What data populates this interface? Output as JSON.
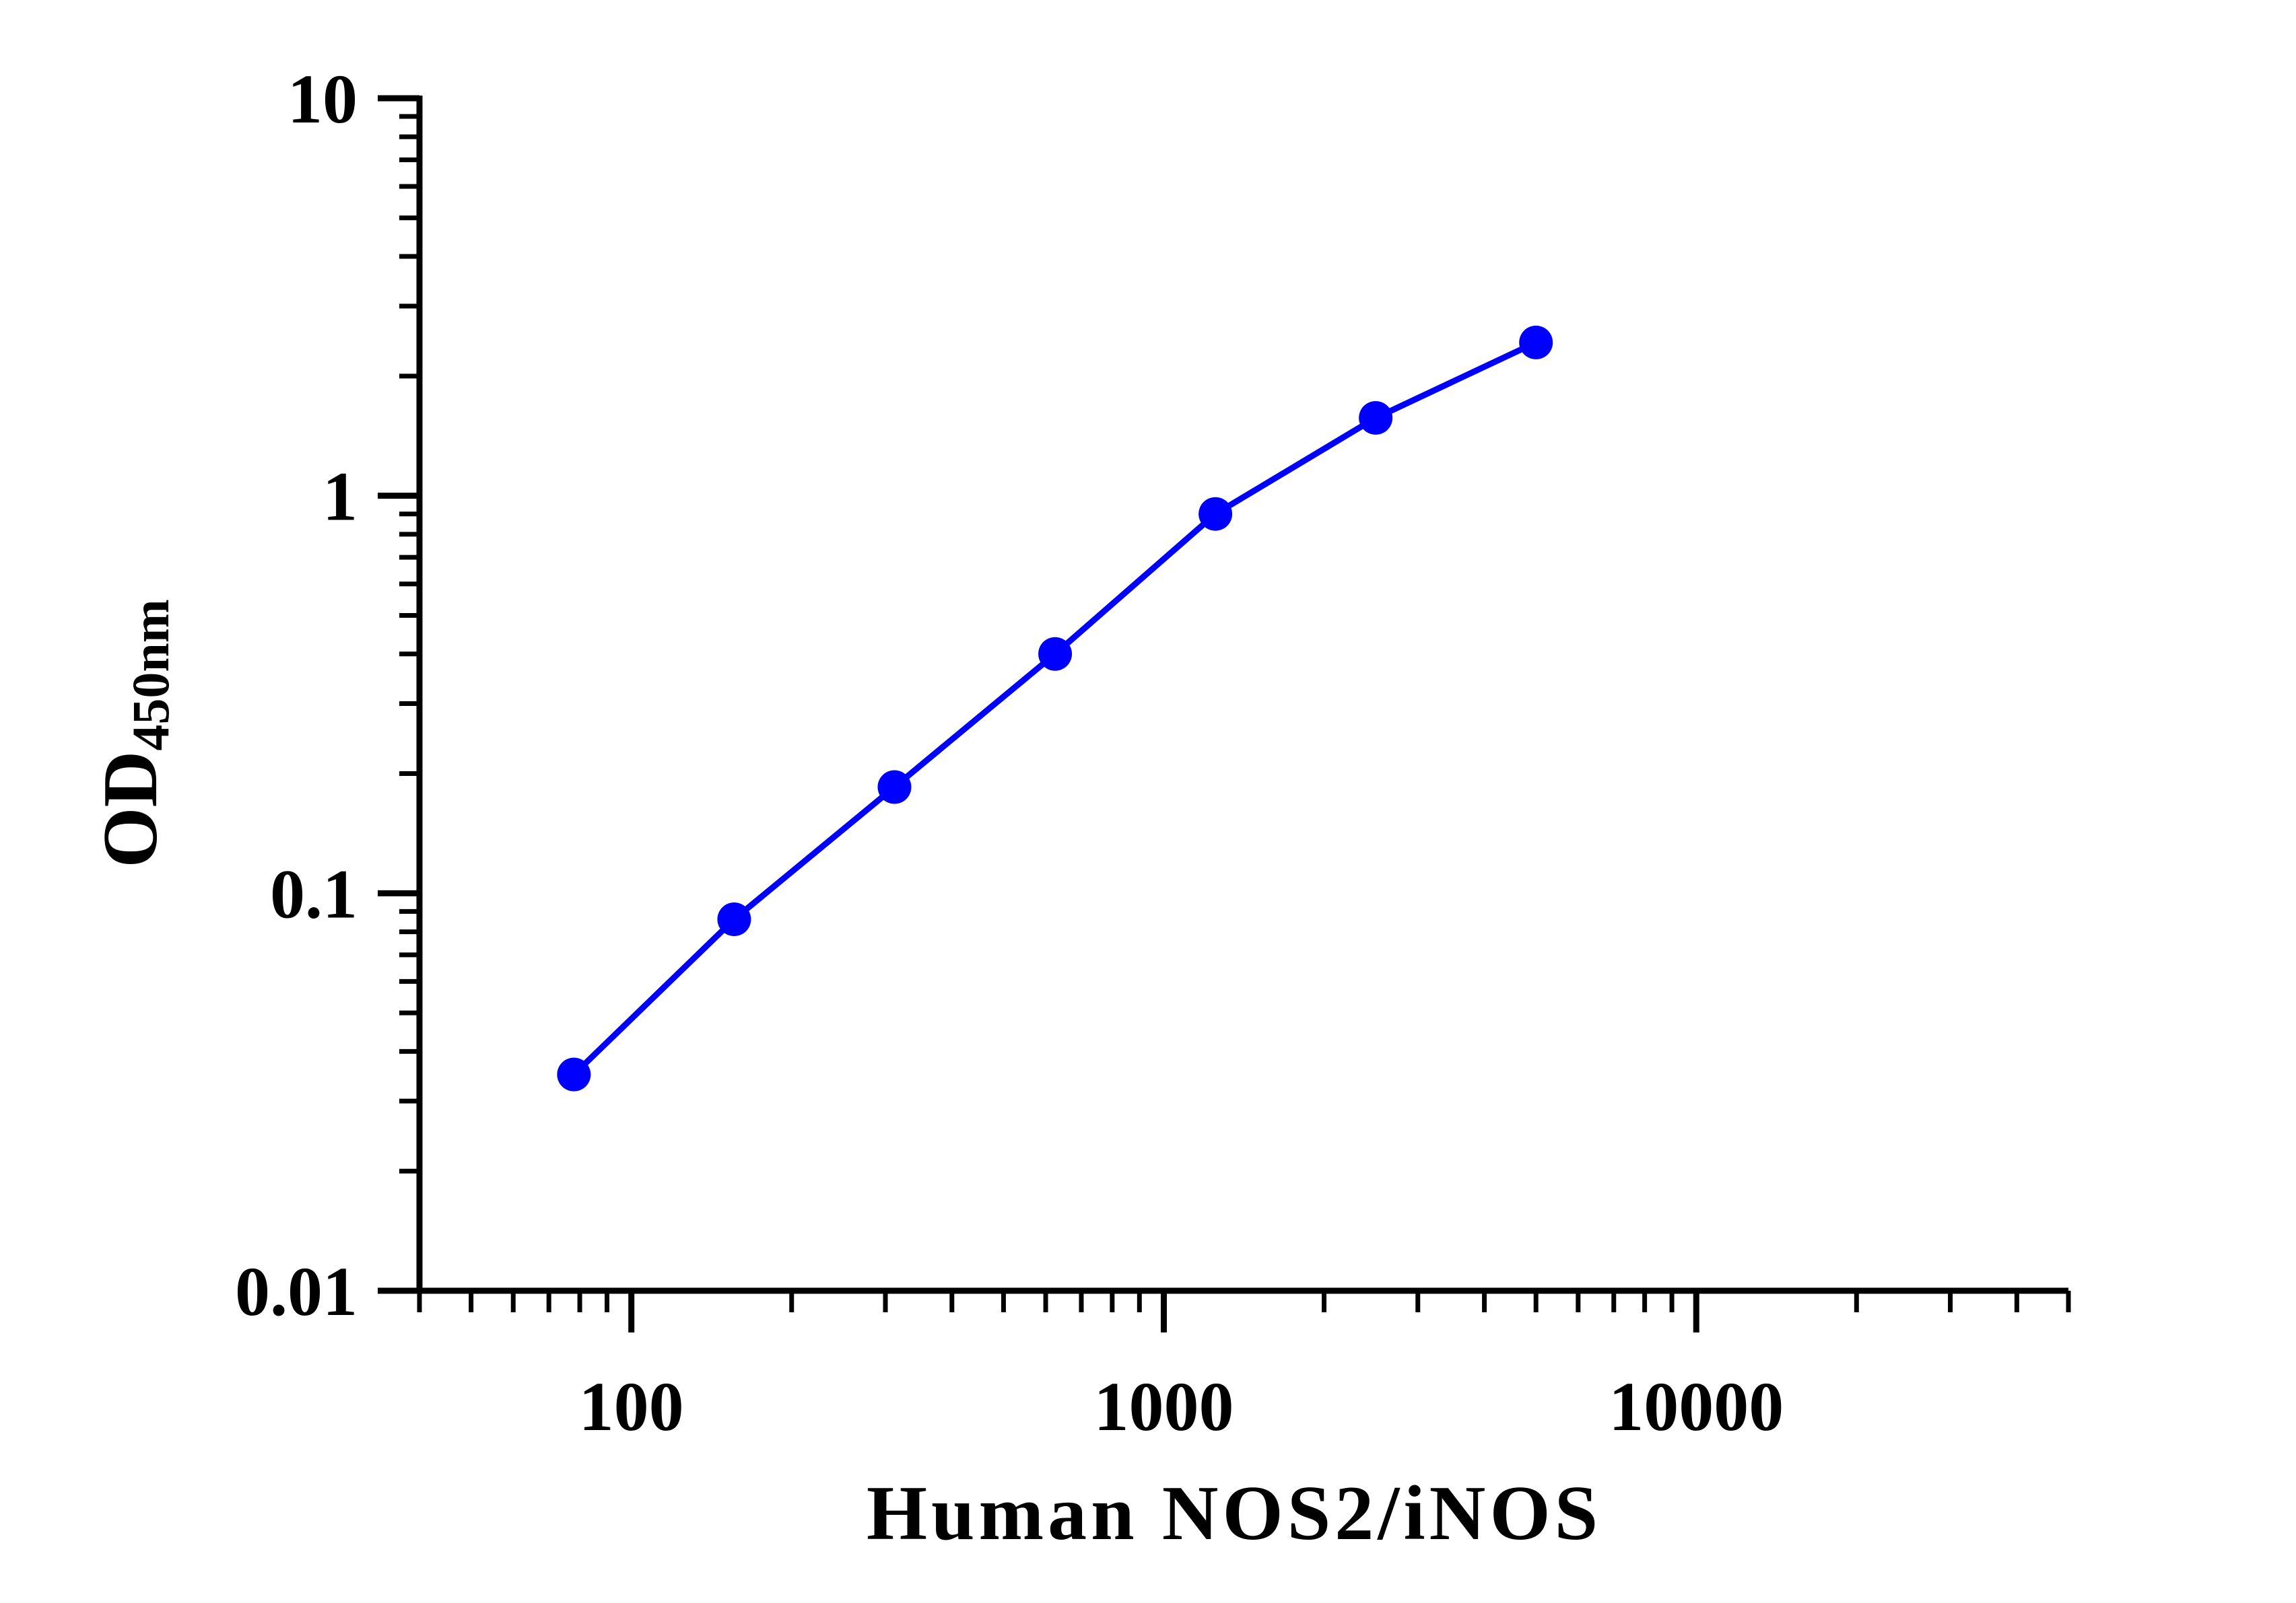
{
  "chart_data": {
    "type": "line",
    "xlabel": "Human NOS2/iNOS",
    "ylabel_main": "OD",
    "ylabel_sub": "450nm",
    "x_scale": "log",
    "y_scale": "log",
    "xlim": [
      40,
      50000
    ],
    "ylim": [
      0.01,
      10
    ],
    "x_tick_labels": [
      "100",
      "1000",
      "10000"
    ],
    "y_tick_labels": [
      "0.01",
      "0.1",
      "1",
      "10"
    ],
    "grid": false,
    "legend": "none",
    "series_color": "#0000ff",
    "series": [
      {
        "x": [
          78,
          156,
          312,
          625,
          1250,
          2500,
          5000
        ],
        "y": [
          0.035,
          0.086,
          0.185,
          0.4,
          0.9,
          1.57,
          2.43
        ]
      }
    ]
  }
}
